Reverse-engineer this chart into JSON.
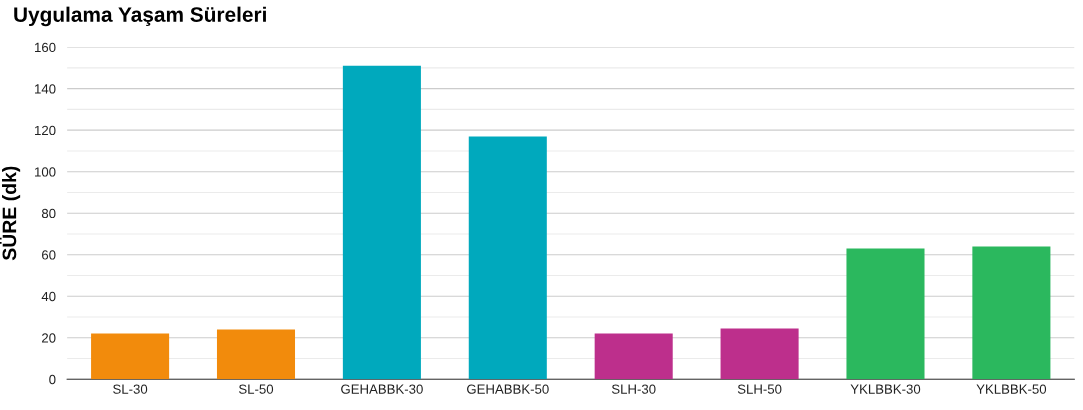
{
  "chart_data": {
    "type": "bar",
    "title": "Uygulama Yaşam Süreleri",
    "ylabel": "SÜRE (dk)",
    "categories": [
      "SL-30",
      "SL-50",
      "GEHABBK-30",
      "GEHABBK-50",
      "SLH-30",
      "SLH-50",
      "YKLBBK-30",
      "YKLBBK-50"
    ],
    "values": [
      22,
      24,
      151,
      117,
      22,
      24.5,
      63,
      64
    ],
    "colors": [
      "#f28b0c",
      "#f28b0c",
      "#00a9bd",
      "#00a9bd",
      "#bd2f8c",
      "#bd2f8c",
      "#2bb85e",
      "#2bb85e"
    ],
    "ylim": [
      0,
      160
    ],
    "yticks": [
      0,
      {
        "value": 10,
        "label": null
      },
      20,
      {
        "value": 30,
        "label": null
      },
      40,
      {
        "value": 50,
        "label": null
      },
      60,
      {
        "value": 70,
        "label": null
      },
      80,
      {
        "value": 90,
        "label": null
      },
      100,
      {
        "value": 110,
        "label": null
      },
      120,
      {
        "value": 130,
        "label": null
      },
      140,
      {
        "value": 150,
        "label": null
      },
      160
    ],
    "grid": "y",
    "legend": false
  }
}
